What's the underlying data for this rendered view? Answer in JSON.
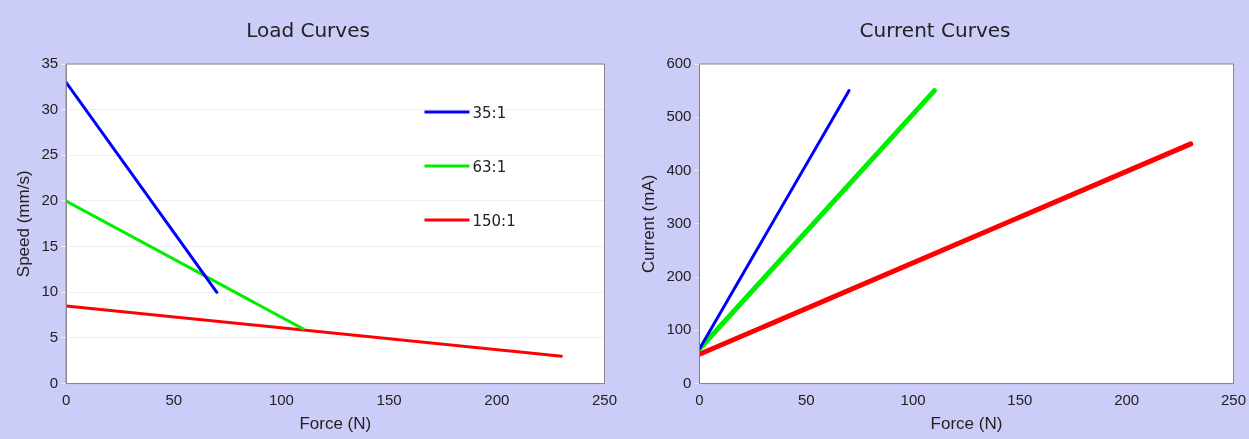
{
  "chart_data": [
    {
      "type": "line",
      "title": "Load Curves",
      "xlabel": "Force (N)",
      "ylabel": "Speed (mm/s)",
      "xlim": [
        0,
        250
      ],
      "xticks": [
        0,
        50,
        100,
        150,
        200,
        250
      ],
      "ylim": [
        0,
        35
      ],
      "yticks": [
        0,
        5,
        10,
        15,
        20,
        25,
        30,
        35
      ],
      "legend": "top right",
      "marker": "none",
      "grid": "y",
      "series": [
        {
          "name": "35:1",
          "color": "#0000ff",
          "x": [
            0,
            70
          ],
          "values": [
            33,
            10
          ]
        },
        {
          "name": "63:1",
          "color": "#00ee00",
          "x": [
            0,
            110
          ],
          "values": [
            20,
            6
          ]
        },
        {
          "name": "150:1",
          "color": "#ff0000",
          "x": [
            0,
            230
          ],
          "values": [
            8.5,
            3
          ]
        }
      ]
    },
    {
      "type": "line",
      "title": "Current Curves",
      "xlabel": "Force (N)",
      "ylabel": "Current (mA)",
      "xlim": [
        0,
        250
      ],
      "xticks": [
        0,
        50,
        100,
        150,
        200,
        250
      ],
      "ylim": [
        0,
        600
      ],
      "yticks": [
        0,
        100,
        200,
        300,
        400,
        500,
        600
      ],
      "marker": "none",
      "series": [
        {
          "color": "#0000ff",
          "x": [
            0,
            70
          ],
          "values": [
            65,
            550
          ]
        },
        {
          "color": "#00ee00",
          "x": [
            0,
            110
          ],
          "values": [
            65,
            550
          ]
        },
        {
          "color": "#ff0000",
          "x": [
            0,
            230
          ],
          "values": [
            55,
            450
          ]
        }
      ]
    }
  ]
}
